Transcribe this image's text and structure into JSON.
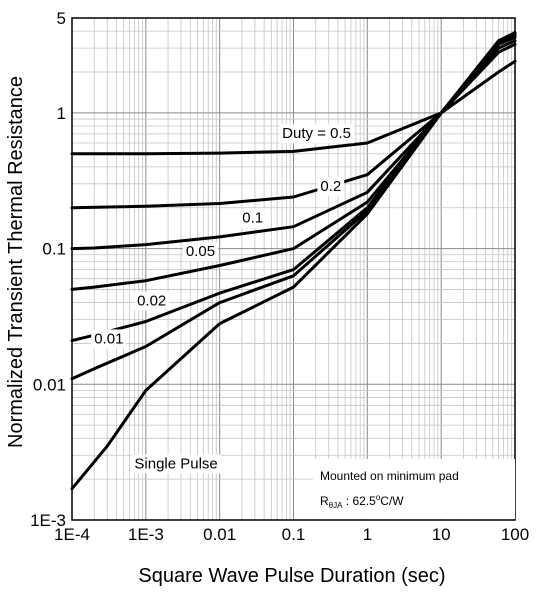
{
  "chart_data": {
    "type": "line",
    "xscale": "log",
    "yscale": "log",
    "xlim": [
      0.0001,
      100
    ],
    "ylim": [
      0.001,
      5
    ],
    "xlabel": "Square Wave Pulse Duration (sec)",
    "ylabel": "Normalized Transient Thermal Resistance",
    "xtick_labels": [
      "1E-4",
      "1E-3",
      "0.01",
      "0.1",
      "1",
      "10",
      "100"
    ],
    "ytick_labels": [
      "1E-3",
      "0.01",
      "0.1",
      "1",
      "5"
    ],
    "grid": true,
    "line_color": "#000000",
    "series": [
      {
        "name": "0.5",
        "label_text": "Duty =  0.5",
        "x": [
          0.0001,
          0.001,
          0.01,
          0.1,
          1,
          10,
          60,
          100
        ],
        "y": [
          0.5,
          0.5,
          0.505,
          0.52,
          0.6,
          1.0,
          2.0,
          2.4
        ]
      },
      {
        "name": "0.2",
        "label_text": "0.2",
        "x": [
          0.0001,
          0.001,
          0.01,
          0.1,
          1,
          10,
          60,
          100
        ],
        "y": [
          0.2,
          0.205,
          0.215,
          0.24,
          0.35,
          1.0,
          2.8,
          3.2
        ]
      },
      {
        "name": "0.1",
        "label_text": "0.1",
        "x": [
          0.0001,
          0.0002,
          0.001,
          0.01,
          0.1,
          1,
          10,
          60,
          100
        ],
        "y": [
          0.1,
          0.101,
          0.107,
          0.122,
          0.145,
          0.26,
          1.0,
          3.0,
          3.4
        ]
      },
      {
        "name": "0.05",
        "label_text": "0.05",
        "x": [
          0.0001,
          0.0002,
          0.001,
          0.01,
          0.1,
          1,
          10,
          60,
          100
        ],
        "y": [
          0.05,
          0.052,
          0.058,
          0.075,
          0.1,
          0.22,
          1.0,
          3.2,
          3.6
        ]
      },
      {
        "name": "0.02",
        "label_text": "0.02",
        "x": [
          0.0001,
          0.0002,
          0.001,
          0.01,
          0.1,
          1,
          10,
          60,
          100
        ],
        "y": [
          0.021,
          0.023,
          0.029,
          0.047,
          0.07,
          0.2,
          1.0,
          3.3,
          3.7
        ]
      },
      {
        "name": "0.01",
        "label_text": "0.01",
        "x": [
          0.0001,
          0.0002,
          0.001,
          0.01,
          0.1,
          1,
          10,
          60,
          100
        ],
        "y": [
          0.011,
          0.013,
          0.019,
          0.04,
          0.063,
          0.19,
          1.0,
          3.35,
          3.8
        ]
      },
      {
        "name": "Single Pulse",
        "label_text": "Single Pulse",
        "x": [
          0.0001,
          0.0003,
          0.001,
          0.01,
          0.1,
          1,
          10,
          60,
          100
        ],
        "y": [
          0.0017,
          0.0035,
          0.009,
          0.028,
          0.052,
          0.18,
          1.0,
          3.4,
          3.9
        ]
      }
    ],
    "annotation_box": {
      "line1": "Mounted on minimum pad",
      "line2_main": "R",
      "line2_sub": "θJA",
      "line2_rest": " : 62.5",
      "line2_sup": "o",
      "line2_unit": "C/W"
    }
  }
}
